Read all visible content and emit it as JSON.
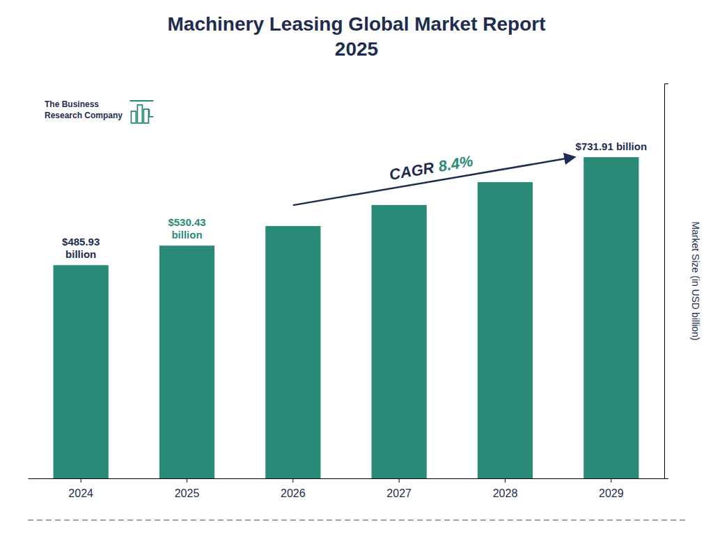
{
  "chart_data": {
    "type": "bar",
    "title": "Machinery Leasing Global Market Report\n2025",
    "categories": [
      "2024",
      "2025",
      "2026",
      "2027",
      "2028",
      "2029"
    ],
    "values": [
      485.93,
      530.43,
      575.0,
      623.0,
      675.0,
      731.91
    ],
    "color": "#2a8a78",
    "ylim": [
      0,
      900
    ],
    "ylabel": "Market Size (in USD billion)",
    "tick_labels": "x",
    "grid": false,
    "data_labels": true,
    "value_labels": [
      "$485.93\nbillion",
      "$530.43\nbillion",
      null,
      null,
      null,
      "$731.91 billion"
    ],
    "annotations": [
      "CAGR",
      "8.4%",
      "The Business\nResearch Company"
    ]
  }
}
